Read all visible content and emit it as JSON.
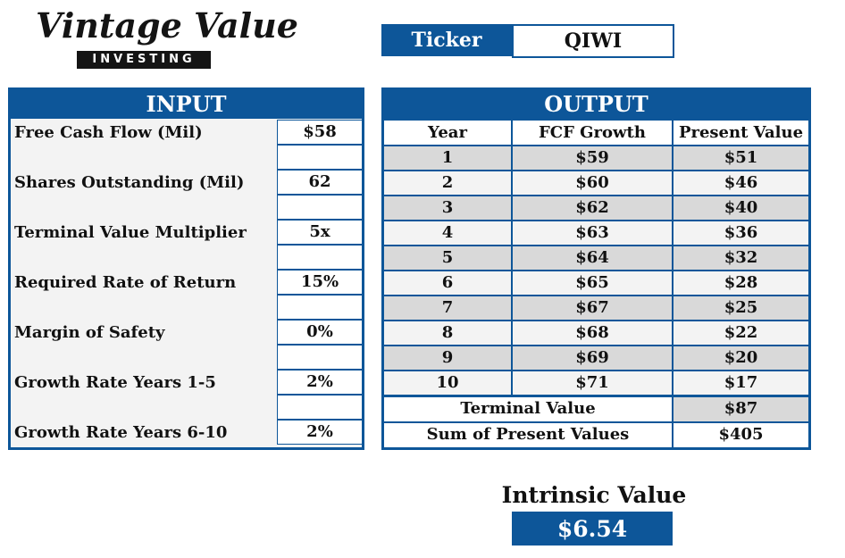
{
  "logo": {
    "script_text": "Vintage Value",
    "bar_text": "INVESTING"
  },
  "ticker": {
    "label": "Ticker",
    "value": "QIWI"
  },
  "input": {
    "title": "INPUT",
    "fields": [
      {
        "label": "Free Cash Flow (Mil)",
        "value": "$58"
      },
      {
        "label": "Shares Outstanding (Mil)",
        "value": "62"
      },
      {
        "label": "Terminal Value Multiplier",
        "value": "5x"
      },
      {
        "label": "Required Rate of Return",
        "value": "15%"
      },
      {
        "label": "Margin of Safety",
        "value": "0%"
      },
      {
        "label": "Growth Rate Years 1-5",
        "value": "2%"
      },
      {
        "label": "Growth Rate Years 6-10",
        "value": "2%"
      }
    ]
  },
  "output": {
    "title": "OUTPUT",
    "columns": [
      "Year",
      "FCF Growth",
      "Present Value"
    ],
    "rows": [
      {
        "year": "1",
        "fcf": "$59",
        "pv": "$51"
      },
      {
        "year": "2",
        "fcf": "$60",
        "pv": "$46"
      },
      {
        "year": "3",
        "fcf": "$62",
        "pv": "$40"
      },
      {
        "year": "4",
        "fcf": "$63",
        "pv": "$36"
      },
      {
        "year": "5",
        "fcf": "$64",
        "pv": "$32"
      },
      {
        "year": "6",
        "fcf": "$65",
        "pv": "$28"
      },
      {
        "year": "7",
        "fcf": "$67",
        "pv": "$25"
      },
      {
        "year": "8",
        "fcf": "$68",
        "pv": "$22"
      },
      {
        "year": "9",
        "fcf": "$69",
        "pv": "$20"
      },
      {
        "year": "10",
        "fcf": "$71",
        "pv": "$17"
      }
    ],
    "terminal_value": {
      "label": "Terminal Value",
      "value": "$87"
    },
    "sum_pv": {
      "label": "Sum of Present Values",
      "value": "$405"
    }
  },
  "intrinsic": {
    "label": "Intrinsic Value",
    "value": "$6.54"
  },
  "colors": {
    "brand_blue": "#0d5699",
    "row_light": "#f3f3f3",
    "row_dark": "#d9d9d9"
  }
}
